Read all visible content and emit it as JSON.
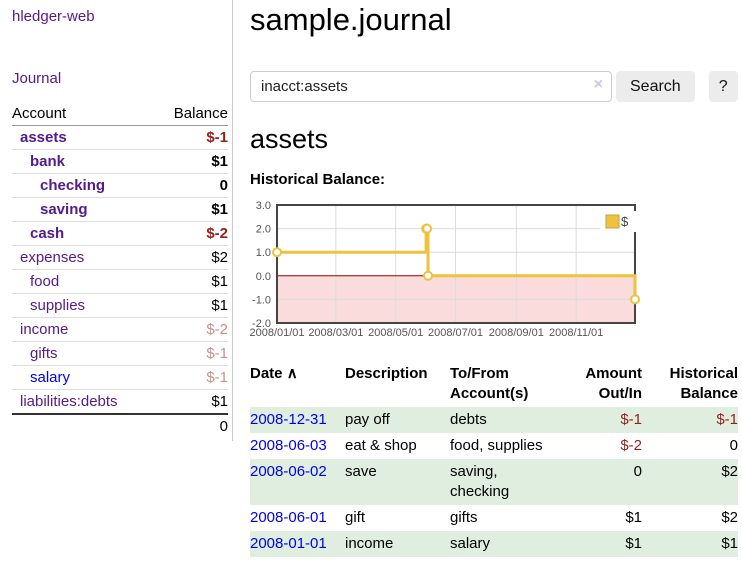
{
  "app": {
    "brand": "hledger-web"
  },
  "sidebar": {
    "journal_link": "Journal",
    "accounts": {
      "headers": {
        "account": "Account",
        "balance": "Balance"
      },
      "rows": [
        {
          "name": "assets",
          "depth": 1,
          "bold": true,
          "balance": "$-1",
          "balance_color": "strong-negative"
        },
        {
          "name": "bank",
          "depth": 2,
          "bold": true,
          "balance": "$1",
          "balance_color": "default"
        },
        {
          "name": "checking",
          "depth": 3,
          "bold": true,
          "balance": "0",
          "balance_color": "default"
        },
        {
          "name": "saving",
          "depth": 3,
          "bold": true,
          "balance": "$1",
          "balance_color": "default"
        },
        {
          "name": "cash",
          "depth": 2,
          "bold": true,
          "balance": "$-2",
          "balance_color": "strong-negative"
        },
        {
          "name": "expenses",
          "depth": 1,
          "bold": false,
          "balance": "$2",
          "balance_color": "default"
        },
        {
          "name": "food",
          "depth": 2,
          "bold": false,
          "balance": "$1",
          "balance_color": "default"
        },
        {
          "name": "supplies",
          "depth": 2,
          "bold": false,
          "balance": "$1",
          "balance_color": "default"
        },
        {
          "name": "income",
          "depth": 1,
          "bold": false,
          "balance": "$-2",
          "balance_color": "faded-negative"
        },
        {
          "name": "gifts",
          "depth": 2,
          "bold": false,
          "balance": "$-1",
          "balance_color": "faded-negative"
        },
        {
          "name": "salary",
          "depth": 2,
          "bold": false,
          "balance": "$-1",
          "balance_color": "faded-negative",
          "link_color": "blue"
        },
        {
          "name": "liabilities:debts",
          "depth": 1,
          "bold": false,
          "balance": "$1",
          "balance_color": "default"
        }
      ],
      "total": "0"
    }
  },
  "header": {
    "journal_title": "sample.journal"
  },
  "search": {
    "value": "inacct:assets",
    "clear_icon": "×",
    "search_button": "Search",
    "help_button": "?"
  },
  "account_page": {
    "title": "assets",
    "chart_label": "Historical Balance:"
  },
  "chart_data": {
    "type": "line",
    "step": true,
    "title": "Historical Balance",
    "series": [
      {
        "name": "$",
        "color": "#edc240",
        "points": [
          [
            "2008-01-01",
            1
          ],
          [
            "2008-06-01",
            2
          ],
          [
            "2008-06-02",
            2
          ],
          [
            "2008-06-03",
            0
          ],
          [
            "2008-12-31",
            -1
          ]
        ]
      }
    ],
    "xlim": [
      "2008-01-01",
      "2008-12-31"
    ],
    "ylim": [
      -2,
      3
    ],
    "y_ticks": [
      {
        "v": 3,
        "label": "3.0"
      },
      {
        "v": 2,
        "label": "2.0"
      },
      {
        "v": 1,
        "label": "1.0"
      },
      {
        "v": 0,
        "label": "0.0"
      },
      {
        "v": -1,
        "label": "-1.0"
      },
      {
        "v": -2,
        "label": "-2.0"
      }
    ],
    "x_ticks": [
      {
        "date": "2008-01-01",
        "label": "2008/01/01"
      },
      {
        "date": "2008-03-01",
        "label": "2008/03/01"
      },
      {
        "date": "2008-05-01",
        "label": "2008/05/01"
      },
      {
        "date": "2008-07-01",
        "label": "2008/07/01"
      },
      {
        "date": "2008-09-01",
        "label": "2008/09/01"
      },
      {
        "date": "2008-11-01",
        "label": "2008/11/01"
      }
    ],
    "legend": {
      "label": "$",
      "position": "top-right"
    },
    "grid": true,
    "negative_region_color": "#fbdcdc",
    "zero_line_color": "#8b0000",
    "grid_color": "#dcdcdc",
    "border_color": "#454545",
    "tick_label_color": "#545454"
  },
  "register": {
    "columns": [
      {
        "label": "Date",
        "sort": "∧",
        "align": "left"
      },
      {
        "label": "Description",
        "align": "left"
      },
      {
        "label": "To/From Account(s)",
        "align": "left"
      },
      {
        "label": "Amount Out/In",
        "align": "right"
      },
      {
        "label": "Historical Balance",
        "align": "right"
      }
    ],
    "rows": [
      {
        "date": "2008-12-31",
        "description": "pay off",
        "accounts": "debts",
        "amount": "$-1",
        "amount_negative": true,
        "balance": "$-1",
        "balance_negative": true,
        "shaded": true
      },
      {
        "date": "2008-06-03",
        "description": "eat & shop",
        "accounts": "food, supplies",
        "amount": "$-2",
        "amount_negative": true,
        "balance": "0",
        "balance_negative": false,
        "shaded": false
      },
      {
        "date": "2008-06-02",
        "description": "save",
        "accounts": "saving,\nchecking",
        "amount": "0",
        "amount_negative": false,
        "balance": "$2",
        "balance_negative": false,
        "shaded": true
      },
      {
        "date": "2008-06-01",
        "description": "gift",
        "accounts": "gifts",
        "amount": "$1",
        "amount_negative": false,
        "balance": "$2",
        "balance_negative": false,
        "shaded": false
      },
      {
        "date": "2008-01-01",
        "description": "income",
        "accounts": "salary",
        "amount": "$1",
        "amount_negative": false,
        "balance": "$1",
        "balance_negative": false,
        "shaded": true
      }
    ]
  },
  "colors": {
    "accent_purple": "#551a8b",
    "link_blue": "#0000ee",
    "negative_strong": "#941f1f",
    "negative_faded": "#c98f8f",
    "row_shade_green": "#dfeede",
    "chart_series_yellow": "#edc240"
  }
}
